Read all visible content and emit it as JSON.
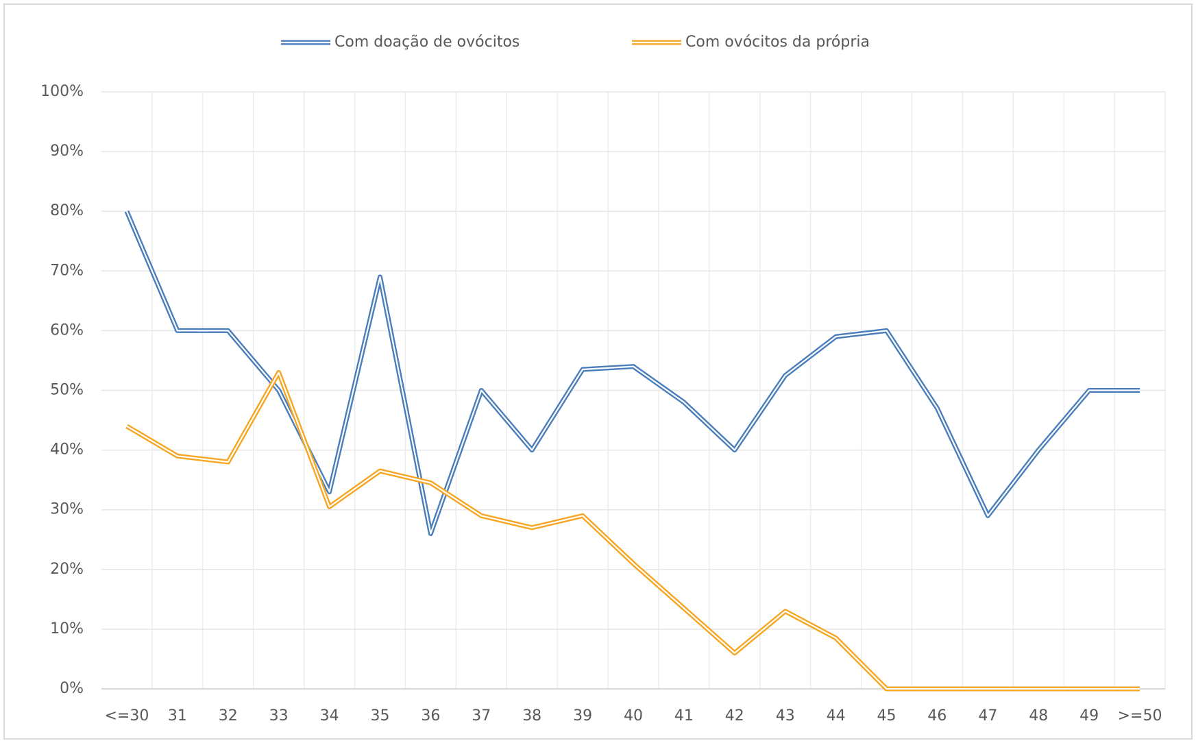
{
  "chart_data": {
    "type": "line",
    "categories": [
      "<=30",
      "31",
      "32",
      "33",
      "34",
      "35",
      "36",
      "37",
      "38",
      "39",
      "40",
      "41",
      "42",
      "43",
      "44",
      "45",
      "46",
      "47",
      "48",
      "49",
      ">=50"
    ],
    "series": [
      {
        "name": "Com doação de ovócitos",
        "color": "#4a7ebb",
        "values": [
          80,
          60,
          60,
          50,
          33,
          69,
          26,
          50,
          40,
          53.5,
          54,
          48,
          40,
          52.5,
          59,
          60,
          47,
          29,
          40,
          50,
          50
        ]
      },
      {
        "name": "Com ovócitos da própria",
        "color": "#f5a623",
        "values": [
          44,
          39,
          38,
          53,
          30.5,
          36.5,
          34.5,
          29,
          27,
          29,
          21,
          13.5,
          6,
          13,
          8.5,
          0,
          0,
          0,
          0,
          0,
          0
        ]
      }
    ],
    "ylim": [
      0,
      100
    ],
    "yticks": [
      {
        "value": 0,
        "label": "0%"
      },
      {
        "value": 10,
        "label": "10%"
      },
      {
        "value": 20,
        "label": "20%"
      },
      {
        "value": 30,
        "label": "30%"
      },
      {
        "value": 40,
        "label": "40%"
      },
      {
        "value": 50,
        "label": "50%"
      },
      {
        "value": 60,
        "label": "60%"
      },
      {
        "value": 70,
        "label": "70%"
      },
      {
        "value": 80,
        "label": "80%"
      },
      {
        "value": 90,
        "label": "90%"
      },
      {
        "value": 100,
        "label": "100%"
      }
    ],
    "grid": true,
    "legend": "top"
  }
}
